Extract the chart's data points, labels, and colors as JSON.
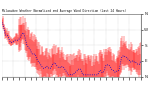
{
  "title": "Milwaukee Weather Normalized and Average Wind Direction (Last 24 Hours)",
  "bg_color": "#ffffff",
  "grid_color": "#aaaaaa",
  "bar_color": "#ff0000",
  "line_color": "#0000cc",
  "n_points": 288,
  "y_min": 0,
  "y_max": 360,
  "y_ticks": [
    0,
    90,
    180,
    270,
    360
  ],
  "y_tick_labels": [
    ".",
    ".",
    ".",
    ".",
    "."
  ],
  "seed": 42
}
